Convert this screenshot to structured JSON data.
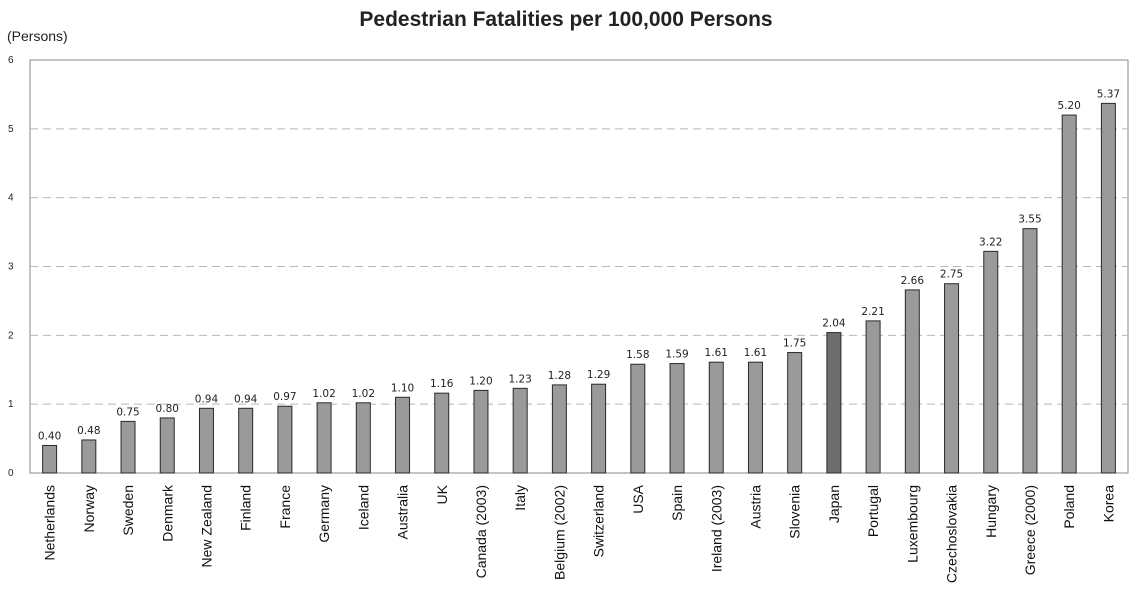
{
  "chart_data": {
    "type": "bar",
    "title": "Pedestrian Fatalities per 100,000 Persons",
    "ylabel": "(Persons)",
    "ylim": [
      0,
      6
    ],
    "yticks": [
      0,
      1,
      2,
      3,
      4,
      5,
      6
    ],
    "grid": true,
    "categories": [
      "Netherlands",
      "Norway",
      "Sweden",
      "Denmark",
      "New Zealand",
      "Finland",
      "France",
      "Germany",
      "Iceland",
      "Australia",
      "UK",
      "Canada (2003)",
      "Italy",
      "Belgium (2002)",
      "Switzerland",
      "USA",
      "Spain",
      "Ireland (2003)",
      "Austria",
      "Slovenia",
      "Japan",
      "Portugal",
      "Luxembourg",
      "Czechoslovakia",
      "Hungary",
      "Greece (2000)",
      "Poland",
      "Korea"
    ],
    "values": [
      0.4,
      0.48,
      0.75,
      0.8,
      0.94,
      0.94,
      0.97,
      1.02,
      1.02,
      1.1,
      1.16,
      1.2,
      1.23,
      1.28,
      1.29,
      1.58,
      1.59,
      1.61,
      1.61,
      1.75,
      2.04,
      2.21,
      2.66,
      2.75,
      3.22,
      3.55,
      5.2,
      5.37
    ],
    "value_labels": [
      "0.40",
      "0.48",
      "0.75",
      "0.80",
      "0.94",
      "0.94",
      "0.97",
      "1.02",
      "1.02",
      "1.10",
      "1.16",
      "1.20",
      "1.23",
      "1.28",
      "1.29",
      "1.58",
      "1.59",
      "1.61",
      "1.61",
      "1.75",
      "2.04",
      "2.21",
      "2.66",
      "2.75",
      "3.22",
      "3.55",
      "5.20",
      "5.37"
    ],
    "highlight_category": "Japan",
    "colors": {
      "bar": "#9a9a9a",
      "highlight": "#6e6e6e",
      "bar_edge": "#2a2a2a",
      "grid": "#b8b8b8"
    }
  }
}
